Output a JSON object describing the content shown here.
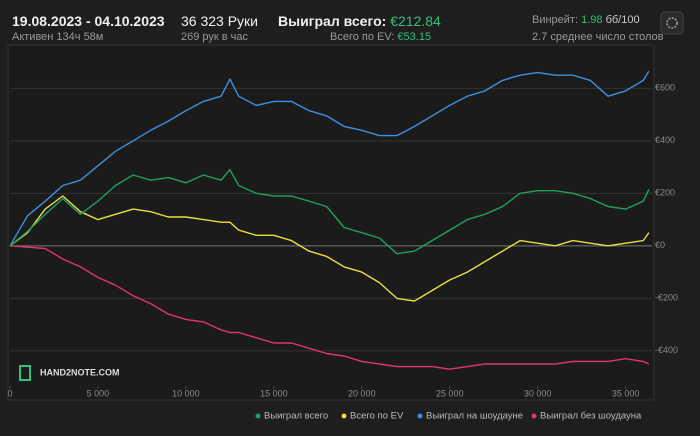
{
  "header": {
    "period": "19.08.2023 - 04.10.2023",
    "active": "Активен 134ч 58м",
    "hands": "36 323 Руки",
    "hands_per_hour": "269 рук в час",
    "won_label": "Выиграл всего:",
    "won_value": "€212.84",
    "ev_label": "Всего по EV:",
    "ev_value": "€53.15",
    "winrate_label": "Винрейт:",
    "winrate_value": "1.98",
    "winrate_unit": "бб/100",
    "tables": "2.7 среднее число столов"
  },
  "logo": "HAND2NOTE.COM",
  "chart_data": {
    "type": "line",
    "x": [
      0,
      1000,
      2000,
      3000,
      4000,
      5000,
      6000,
      7000,
      8000,
      9000,
      10000,
      11000,
      12000,
      12500,
      13000,
      14000,
      15000,
      16000,
      17000,
      18000,
      19000,
      20000,
      21000,
      22000,
      23000,
      24000,
      25000,
      26000,
      27000,
      28000,
      29000,
      30000,
      31000,
      32000,
      33000,
      34000,
      35000,
      36000,
      36323
    ],
    "series": [
      {
        "name": "Выиграл всего",
        "color": "#1f9e5e",
        "values": [
          0,
          55,
          120,
          180,
          120,
          170,
          230,
          270,
          250,
          260,
          240,
          270,
          250,
          290,
          230,
          200,
          190,
          190,
          170,
          150,
          70,
          50,
          30,
          -30,
          -20,
          20,
          60,
          100,
          120,
          150,
          200,
          210,
          210,
          200,
          180,
          150,
          140,
          170,
          215
        ]
      },
      {
        "name": "Всего по EV",
        "color": "#e6e13a",
        "values": [
          0,
          50,
          140,
          190,
          130,
          100,
          120,
          140,
          130,
          110,
          110,
          100,
          90,
          90,
          60,
          40,
          40,
          20,
          -20,
          -40,
          -80,
          -100,
          -140,
          -200,
          -210,
          -170,
          -130,
          -100,
          -60,
          -20,
          20,
          10,
          0,
          20,
          10,
          0,
          10,
          20,
          50
        ]
      },
      {
        "name": "Выиграл на шоудауне",
        "color": "#3f8fdf",
        "values": [
          0,
          115,
          170,
          230,
          250,
          305,
          360,
          400,
          440,
          475,
          515,
          550,
          570,
          635,
          570,
          535,
          550,
          550,
          515,
          495,
          455,
          440,
          420,
          420,
          455,
          495,
          535,
          570,
          590,
          630,
          650,
          660,
          650,
          650,
          630,
          570,
          590,
          630,
          665
        ]
      },
      {
        "name": "Выиграл без шоудауна",
        "color": "#e0356b",
        "values": [
          0,
          -5,
          -10,
          -50,
          -80,
          -120,
          -150,
          -190,
          -220,
          -260,
          -280,
          -290,
          -320,
          -330,
          -330,
          -350,
          -370,
          -370,
          -390,
          -410,
          -420,
          -440,
          -450,
          -460,
          -460,
          -460,
          -470,
          -460,
          -450,
          -450,
          -450,
          -450,
          -450,
          -440,
          -440,
          -440,
          -430,
          -440,
          -450
        ]
      }
    ],
    "xlim": [
      0,
      36500
    ],
    "ylim": [
      -530,
      765
    ],
    "xticks": [
      0,
      {
        "value": 5000,
        "label": "5 000"
      },
      {
        "value": 10000,
        "label": "10 000"
      },
      {
        "value": 15000,
        "label": "15 000"
      },
      {
        "value": 20000,
        "label": "20 000"
      },
      {
        "value": 25000,
        "label": "25 000"
      },
      {
        "value": 30000,
        "label": "30 000"
      },
      {
        "value": 35000,
        "label": "35 000"
      }
    ],
    "yticks": [
      {
        "value": -400,
        "label": "-€400"
      },
      {
        "value": -200,
        "label": "-€200"
      },
      {
        "value": 0,
        "label": "€0"
      },
      {
        "value": 200,
        "label": "€200"
      },
      {
        "value": 400,
        "label": "€400"
      },
      {
        "value": 600,
        "label": "€600"
      }
    ],
    "grid": true
  }
}
